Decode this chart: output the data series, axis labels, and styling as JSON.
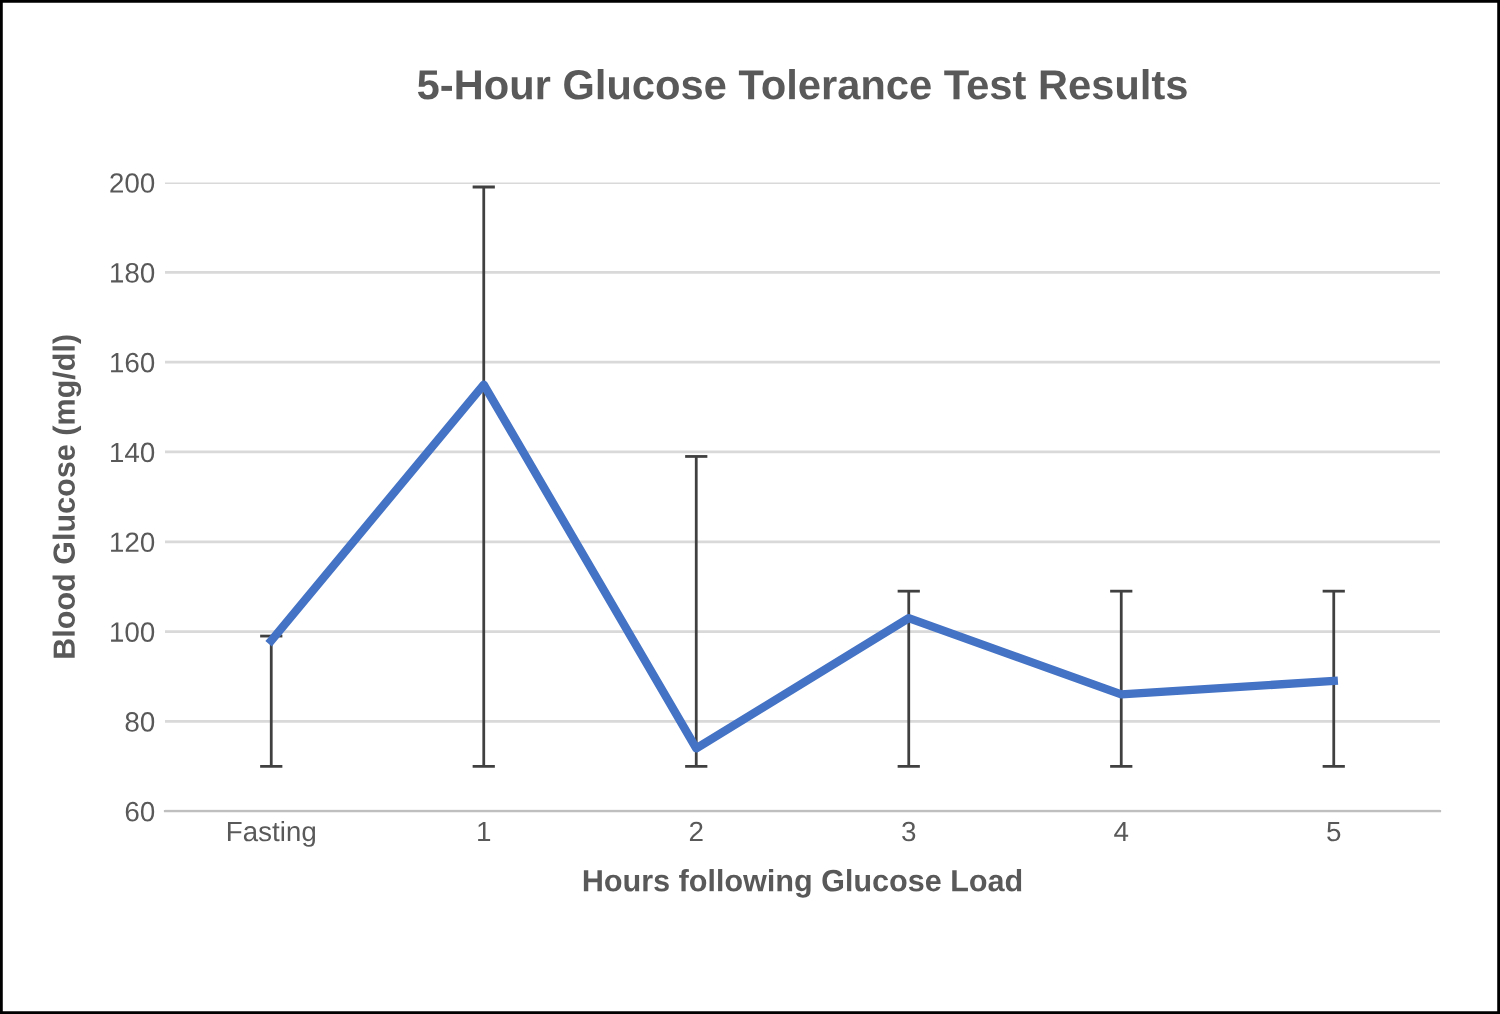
{
  "chart_data": {
    "type": "line",
    "title": "5-Hour Glucose Tolerance Test Results",
    "xlabel": "Hours following Glucose Load",
    "ylabel": "Blood Glucose (mg/dl)",
    "categories": [
      "Fasting",
      "1",
      "2",
      "3",
      "4",
      "5"
    ],
    "series": [
      {
        "color": "#4472c4",
        "values": [
          98,
          155,
          74,
          103,
          86,
          89
        ],
        "errors": [
          [
            70,
            99
          ],
          [
            70,
            199
          ],
          [
            70,
            139
          ],
          [
            70,
            109
          ],
          [
            70,
            109
          ],
          [
            70,
            109
          ]
        ]
      }
    ],
    "ylim": [
      60,
      200
    ],
    "yticks": [
      60,
      80,
      100,
      120,
      140,
      160,
      180,
      200
    ],
    "grid": "y",
    "marker": "none",
    "line_style": "solid"
  }
}
